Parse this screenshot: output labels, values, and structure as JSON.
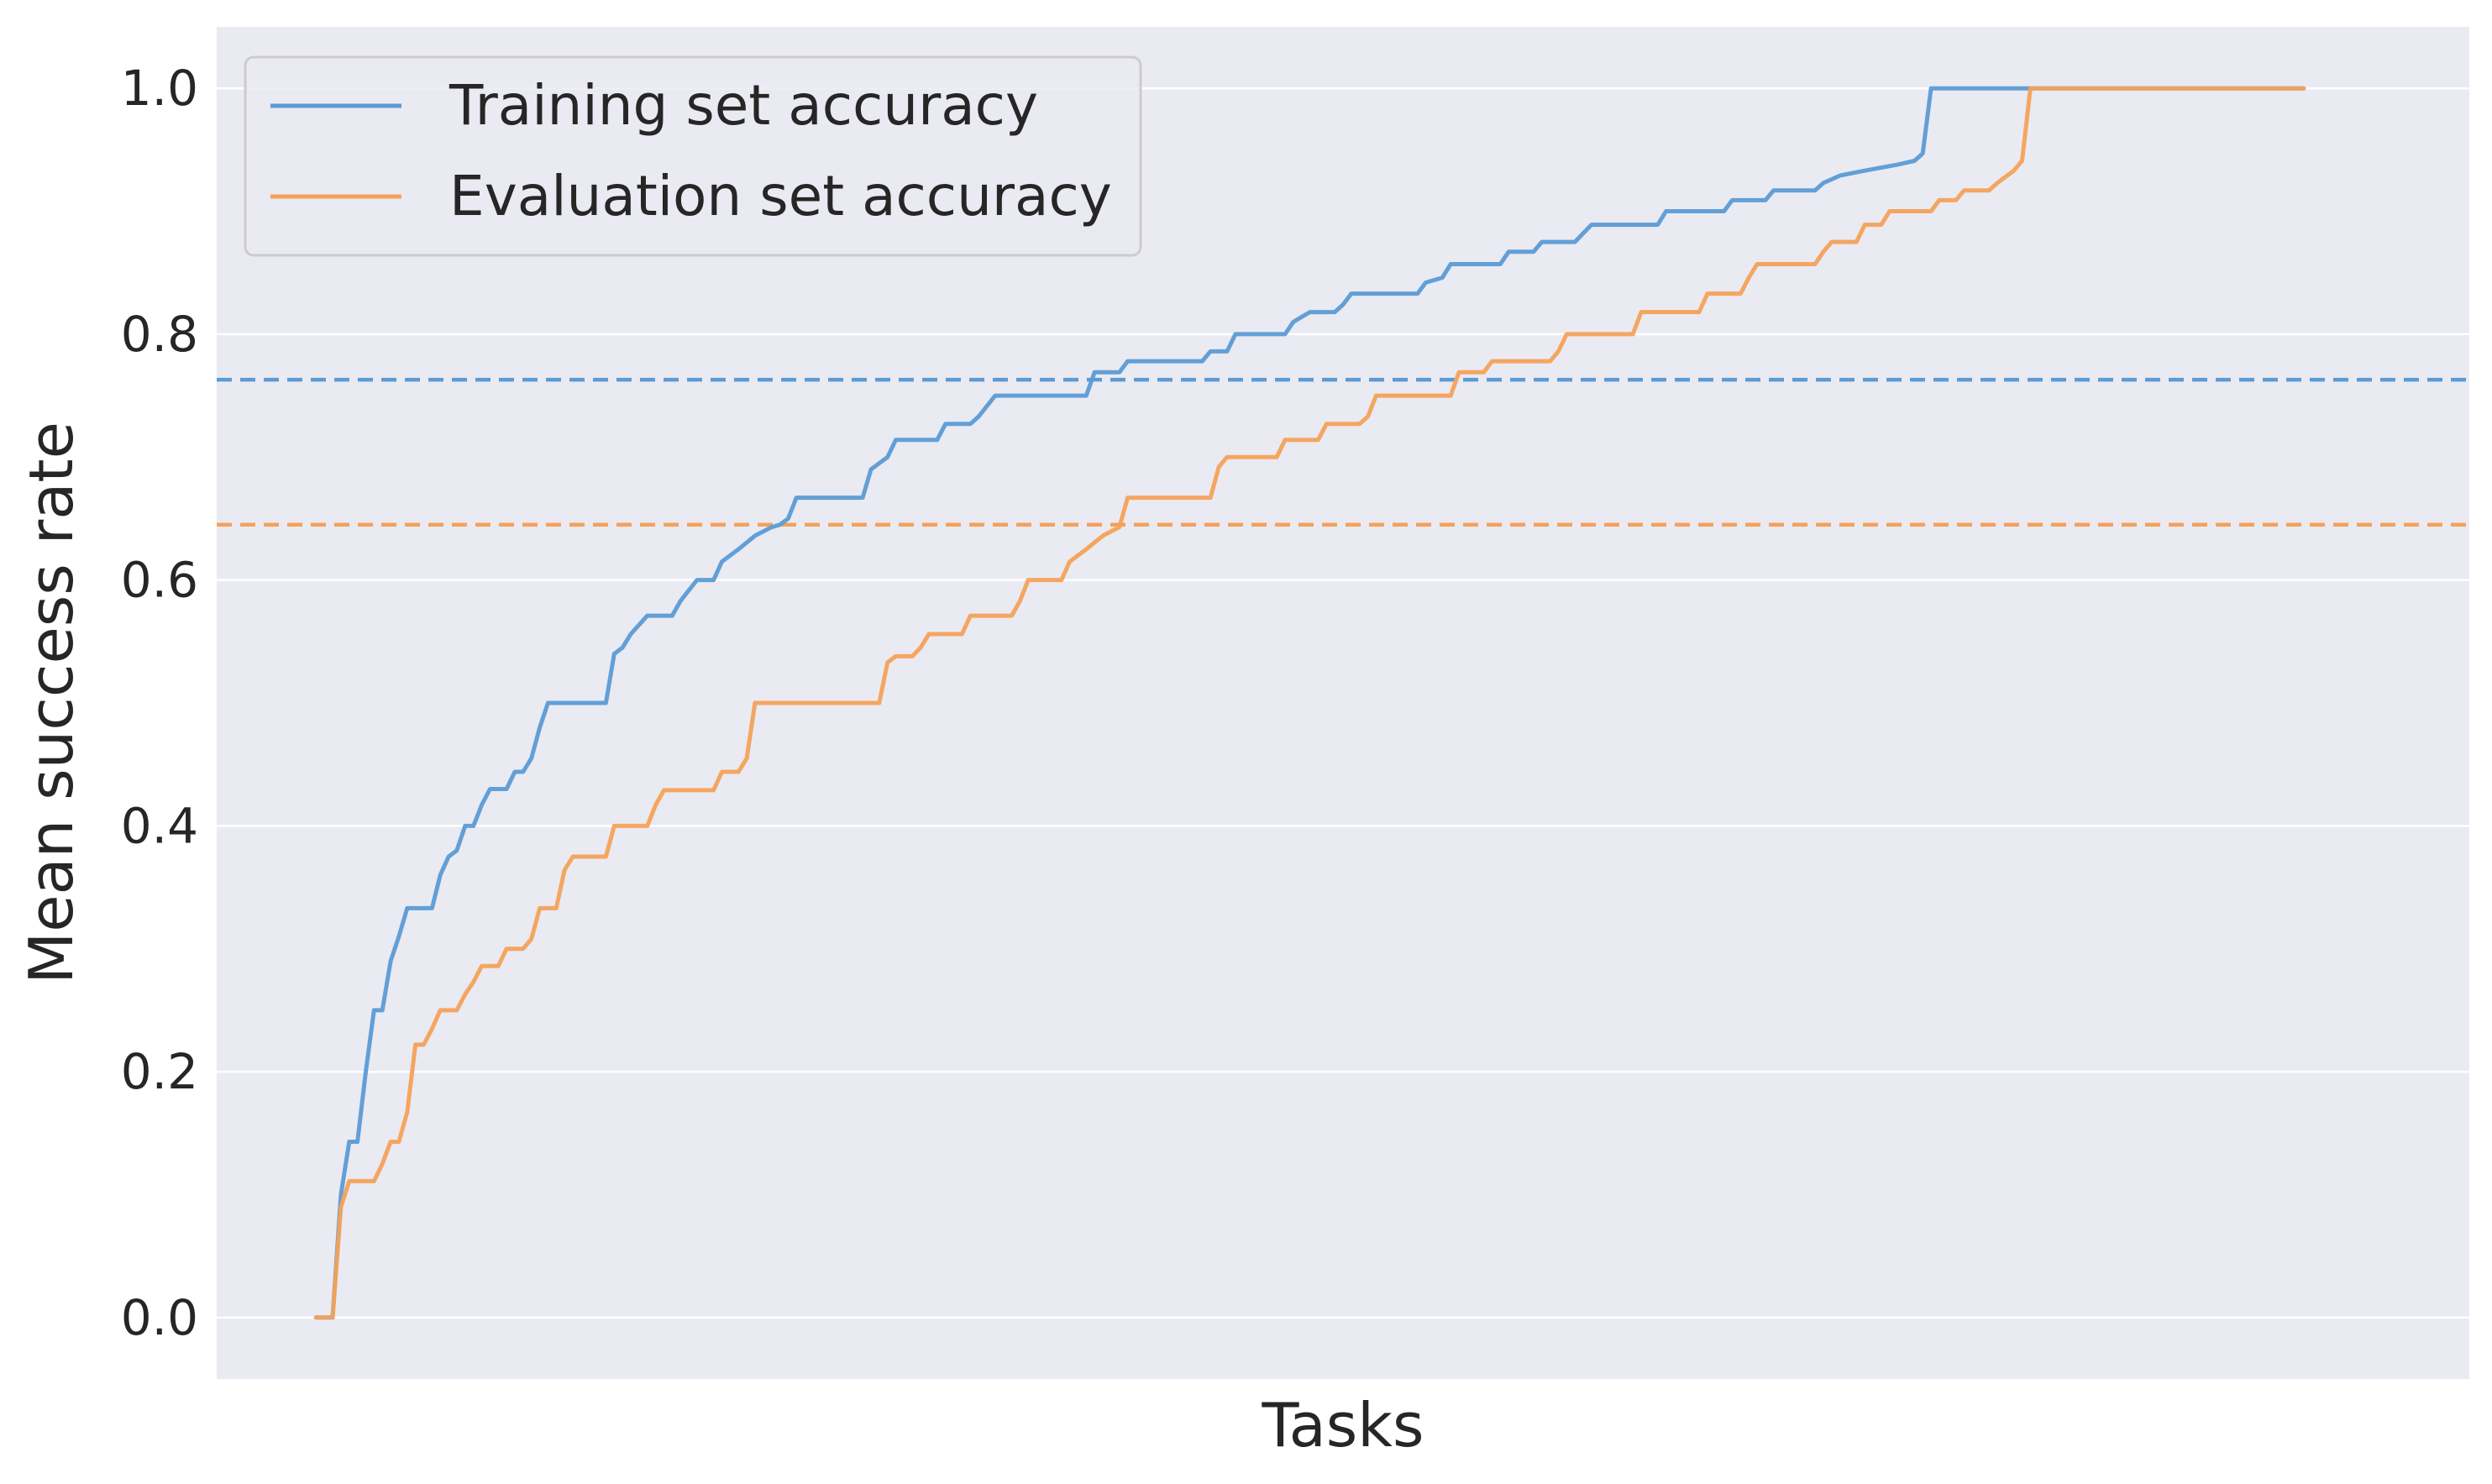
{
  "chart_data": {
    "type": "line",
    "title": "",
    "xlabel": "Tasks",
    "ylabel": "Mean success rate",
    "ylim": [
      -0.05,
      1.05
    ],
    "xlim": [
      -12,
      260
    ],
    "grid": true,
    "x_tick_labels": [],
    "y_ticks": [
      0.0,
      0.2,
      0.4,
      0.6,
      0.8,
      1.0
    ],
    "y_tick_labels": [
      "0.0",
      "0.2",
      "0.4",
      "0.6",
      "0.8",
      "1.0"
    ],
    "legend": {
      "placement": "top-left",
      "entries": [
        "Training set accuracy",
        "Evaluation set accuracy"
      ]
    },
    "colors": {
      "background": "#eaeaf2",
      "grid": "#ffffff",
      "training": "#5b9bd5",
      "evaluation": "#f4a259",
      "text": "#262626"
    },
    "series": [
      {
        "name": "Training set accuracy",
        "style": "solid",
        "points": [
          [
            0,
            0.0
          ],
          [
            2,
            0.0
          ],
          [
            3,
            0.1
          ],
          [
            4,
            0.143
          ],
          [
            5,
            0.143
          ],
          [
            6,
            0.2
          ],
          [
            7,
            0.25
          ],
          [
            8,
            0.25
          ],
          [
            9,
            0.29
          ],
          [
            10,
            0.31
          ],
          [
            11,
            0.333
          ],
          [
            14,
            0.333
          ],
          [
            15,
            0.36
          ],
          [
            16,
            0.375
          ],
          [
            17,
            0.38
          ],
          [
            18,
            0.4
          ],
          [
            19,
            0.4
          ],
          [
            20,
            0.417
          ],
          [
            21,
            0.43
          ],
          [
            23,
            0.43
          ],
          [
            24,
            0.444
          ],
          [
            25,
            0.444
          ],
          [
            26,
            0.455
          ],
          [
            27,
            0.48
          ],
          [
            28,
            0.5
          ],
          [
            35,
            0.5
          ],
          [
            36,
            0.54
          ],
          [
            37,
            0.545
          ],
          [
            38,
            0.556
          ],
          [
            40,
            0.571
          ],
          [
            43,
            0.571
          ],
          [
            44,
            0.583
          ],
          [
            46,
            0.6
          ],
          [
            48,
            0.6
          ],
          [
            49,
            0.615
          ],
          [
            51,
            0.625
          ],
          [
            53,
            0.636
          ],
          [
            55,
            0.643
          ],
          [
            56,
            0.645
          ],
          [
            57,
            0.65
          ],
          [
            58,
            0.667
          ],
          [
            66,
            0.667
          ],
          [
            67,
            0.69
          ],
          [
            69,
            0.7
          ],
          [
            70,
            0.714
          ],
          [
            75,
            0.714
          ],
          [
            76,
            0.727
          ],
          [
            79,
            0.727
          ],
          [
            80,
            0.733
          ],
          [
            82,
            0.75
          ],
          [
            93,
            0.75
          ],
          [
            94,
            0.769
          ],
          [
            97,
            0.769
          ],
          [
            98,
            0.778
          ],
          [
            107,
            0.778
          ],
          [
            108,
            0.786
          ],
          [
            110,
            0.786
          ],
          [
            111,
            0.8
          ],
          [
            117,
            0.8
          ],
          [
            118,
            0.81
          ],
          [
            120,
            0.818
          ],
          [
            123,
            0.818
          ],
          [
            124,
            0.824
          ],
          [
            125,
            0.833
          ],
          [
            133,
            0.833
          ],
          [
            134,
            0.842
          ],
          [
            136,
            0.846
          ],
          [
            137,
            0.857
          ],
          [
            143,
            0.857
          ],
          [
            144,
            0.867
          ],
          [
            147,
            0.867
          ],
          [
            148,
            0.875
          ],
          [
            152,
            0.875
          ],
          [
            153,
            0.882
          ],
          [
            154,
            0.889
          ],
          [
            162,
            0.889
          ],
          [
            163,
            0.9
          ],
          [
            170,
            0.9
          ],
          [
            171,
            0.909
          ],
          [
            175,
            0.909
          ],
          [
            176,
            0.917
          ],
          [
            181,
            0.917
          ],
          [
            182,
            0.923
          ],
          [
            184,
            0.929
          ],
          [
            187,
            0.933
          ],
          [
            191,
            0.938
          ],
          [
            193,
            0.941
          ],
          [
            194,
            0.947
          ],
          [
            195,
            1.0
          ],
          [
            240,
            1.0
          ]
        ]
      },
      {
        "name": "Evaluation set accuracy",
        "style": "solid",
        "points": [
          [
            0,
            0.0
          ],
          [
            2,
            0.0
          ],
          [
            3,
            0.09
          ],
          [
            4,
            0.111
          ],
          [
            7,
            0.111
          ],
          [
            8,
            0.125
          ],
          [
            9,
            0.143
          ],
          [
            10,
            0.143
          ],
          [
            11,
            0.167
          ],
          [
            12,
            0.222
          ],
          [
            13,
            0.222
          ],
          [
            14,
            0.235
          ],
          [
            15,
            0.25
          ],
          [
            17,
            0.25
          ],
          [
            18,
            0.263
          ],
          [
            19,
            0.273
          ],
          [
            20,
            0.286
          ],
          [
            22,
            0.286
          ],
          [
            23,
            0.3
          ],
          [
            25,
            0.3
          ],
          [
            26,
            0.308
          ],
          [
            27,
            0.333
          ],
          [
            29,
            0.333
          ],
          [
            30,
            0.364
          ],
          [
            31,
            0.375
          ],
          [
            35,
            0.375
          ],
          [
            36,
            0.4
          ],
          [
            40,
            0.4
          ],
          [
            41,
            0.417
          ],
          [
            42,
            0.429
          ],
          [
            48,
            0.429
          ],
          [
            49,
            0.444
          ],
          [
            51,
            0.444
          ],
          [
            52,
            0.455
          ],
          [
            53,
            0.5
          ],
          [
            68,
            0.5
          ],
          [
            69,
            0.533
          ],
          [
            70,
            0.538
          ],
          [
            72,
            0.538
          ],
          [
            73,
            0.545
          ],
          [
            74,
            0.556
          ],
          [
            78,
            0.556
          ],
          [
            79,
            0.571
          ],
          [
            84,
            0.571
          ],
          [
            85,
            0.583
          ],
          [
            86,
            0.6
          ],
          [
            90,
            0.6
          ],
          [
            91,
            0.615
          ],
          [
            93,
            0.625
          ],
          [
            95,
            0.636
          ],
          [
            97,
            0.643
          ],
          [
            98,
            0.667
          ],
          [
            108,
            0.667
          ],
          [
            109,
            0.692
          ],
          [
            110,
            0.7
          ],
          [
            116,
            0.7
          ],
          [
            117,
            0.714
          ],
          [
            121,
            0.714
          ],
          [
            122,
            0.727
          ],
          [
            126,
            0.727
          ],
          [
            127,
            0.733
          ],
          [
            128,
            0.75
          ],
          [
            137,
            0.75
          ],
          [
            138,
            0.769
          ],
          [
            141,
            0.769
          ],
          [
            142,
            0.778
          ],
          [
            149,
            0.778
          ],
          [
            150,
            0.786
          ],
          [
            151,
            0.8
          ],
          [
            159,
            0.8
          ],
          [
            160,
            0.818
          ],
          [
            167,
            0.818
          ],
          [
            168,
            0.833
          ],
          [
            172,
            0.833
          ],
          [
            173,
            0.846
          ],
          [
            174,
            0.857
          ],
          [
            181,
            0.857
          ],
          [
            182,
            0.867
          ],
          [
            183,
            0.875
          ],
          [
            186,
            0.875
          ],
          [
            187,
            0.889
          ],
          [
            189,
            0.889
          ],
          [
            190,
            0.9
          ],
          [
            195,
            0.9
          ],
          [
            196,
            0.909
          ],
          [
            198,
            0.909
          ],
          [
            199,
            0.917
          ],
          [
            202,
            0.917
          ],
          [
            203,
            0.923
          ],
          [
            205,
            0.933
          ],
          [
            206,
            0.941
          ],
          [
            207,
            1.0
          ],
          [
            240,
            1.0
          ]
        ]
      },
      {
        "name": "",
        "style": "dashed",
        "color_key": "training",
        "y_constant": 0.763
      },
      {
        "name": "",
        "style": "dashed",
        "color_key": "evaluation",
        "y_constant": 0.645
      }
    ]
  }
}
